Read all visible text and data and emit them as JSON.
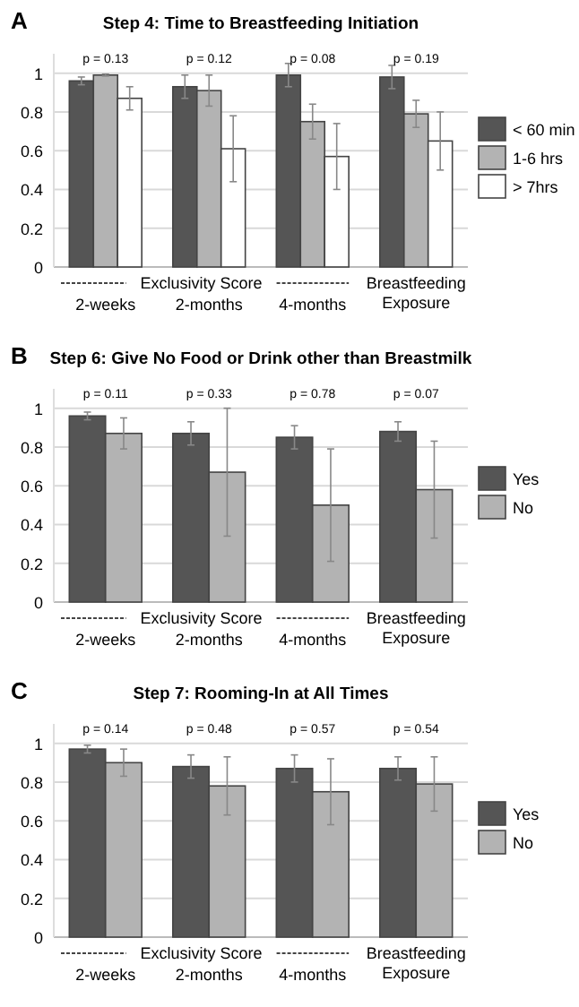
{
  "chart_data": [
    {
      "type": "bar",
      "title": "Step 4: Time to Breastfeeding Initiation",
      "categories": [
        "2-weeks",
        "2-months",
        "4-months",
        "Breastfeeding Exposure"
      ],
      "series": [
        {
          "name": "< 60 min",
          "color": "#555555",
          "values": [
            0.96,
            0.93,
            0.99,
            0.98
          ],
          "errors": [
            0.02,
            0.06,
            0.06,
            0.06
          ]
        },
        {
          "name": "1-6 hrs",
          "color": "#b3b3b3",
          "values": [
            0.99,
            0.91,
            0.75,
            0.79
          ],
          "errors": [
            0.005,
            0.08,
            0.09,
            0.07
          ]
        },
        {
          "name": "> 7hrs",
          "color": "#ffffff",
          "values": [
            0.87,
            0.61,
            0.57,
            0.65
          ],
          "errors": [
            0.06,
            0.17,
            0.17,
            0.15
          ]
        }
      ],
      "ylim": [
        0,
        1.1
      ],
      "yticks": [
        0,
        0.2,
        0.4,
        0.6,
        0.8,
        1
      ],
      "grid": "y",
      "legend": "right",
      "annotations": [
        "A",
        "Exclusivity Score",
        "p = 0.13",
        "p = 0.12",
        "p = 0.08",
        "p = 0.19"
      ]
    },
    {
      "type": "bar",
      "title": "Step 6: Give No Food or Drink other than Breastmilk",
      "categories": [
        "2-weeks",
        "2-months",
        "4-months",
        "Breastfeeding Exposure"
      ],
      "series": [
        {
          "name": "Yes",
          "color": "#555555",
          "values": [
            0.96,
            0.87,
            0.85,
            0.88
          ],
          "errors": [
            0.02,
            0.06,
            0.06,
            0.05
          ]
        },
        {
          "name": "No",
          "color": "#b3b3b3",
          "values": [
            0.87,
            0.67,
            0.5,
            0.58
          ],
          "errors": [
            0.08,
            0.33,
            0.29,
            0.25
          ]
        }
      ],
      "ylim": [
        0,
        1.1
      ],
      "yticks": [
        0,
        0.2,
        0.4,
        0.6,
        0.8,
        1
      ],
      "grid": "y",
      "legend": "right",
      "annotations": [
        "B",
        "Exclusivity Score",
        "p = 0.11",
        "p = 0.33",
        "p = 0.78",
        "p = 0.07"
      ]
    },
    {
      "type": "bar",
      "title": "Step 7: Rooming-In at All Times",
      "categories": [
        "2-weeks",
        "2-months",
        "4-months",
        "Breastfeeding Exposure"
      ],
      "series": [
        {
          "name": "Yes",
          "color": "#555555",
          "values": [
            0.97,
            0.88,
            0.87,
            0.87
          ],
          "errors": [
            0.02,
            0.06,
            0.07,
            0.06
          ]
        },
        {
          "name": "No",
          "color": "#b3b3b3",
          "values": [
            0.9,
            0.78,
            0.75,
            0.79
          ],
          "errors": [
            0.07,
            0.15,
            0.17,
            0.14
          ]
        }
      ],
      "ylim": [
        0,
        1.1
      ],
      "yticks": [
        0,
        0.2,
        0.4,
        0.6,
        0.8,
        1
      ],
      "grid": "y",
      "legend": "right",
      "annotations": [
        "C",
        "Exclusivity Score",
        "p = 0.14",
        "p = 0.48",
        "p = 0.57",
        "p = 0.54"
      ]
    }
  ]
}
